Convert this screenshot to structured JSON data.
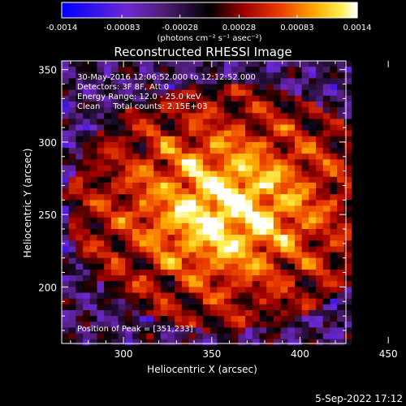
{
  "chart_data": {
    "type": "heatmap",
    "title": "Reconstructed RHESSI Image",
    "xlabel": "Heliocentric X (arcsec)",
    "ylabel": "Heliocentric Y (arcsec)",
    "xlim": [
      265,
      426
    ],
    "ylim": [
      161,
      356
    ],
    "xticks": [
      "300",
      "350",
      "400",
      "450"
    ],
    "yticks": [
      "200",
      "250",
      "300",
      "350"
    ],
    "xtick_values": [
      300,
      350,
      400,
      450
    ],
    "ytick_values": [
      200,
      250,
      300,
      350
    ],
    "colorbar": {
      "min": -0.0014,
      "max": 0.0014,
      "tick_labels": [
        "-0.0014",
        "-0.00083",
        "-0.00028",
        "0.00028",
        "0.00083",
        "0.0014"
      ],
      "tick_values": [
        -0.0014,
        -0.00083,
        -0.00028,
        0.00028,
        0.00083,
        0.0014
      ],
      "units": "(photons cm⁻² s⁻¹ asec⁻²)"
    },
    "annotations": [
      "30-May-2016 12:06:52.000 to 12:12:52.000",
      "Detectors: 3F 8F, Att 0",
      "Energy Range: 12.0 - 25.0 keV",
      "Clean     Total counts: 2.15E+03"
    ],
    "peak_label": "Position of Peak = [351,233]",
    "peak": [
      351,
      233
    ],
    "source_center": [
      358,
      255
    ],
    "colors": {
      "background": "#000000",
      "text": "#ffffff"
    }
  },
  "footer": {
    "date": "5-Sep-2022 17:12"
  }
}
